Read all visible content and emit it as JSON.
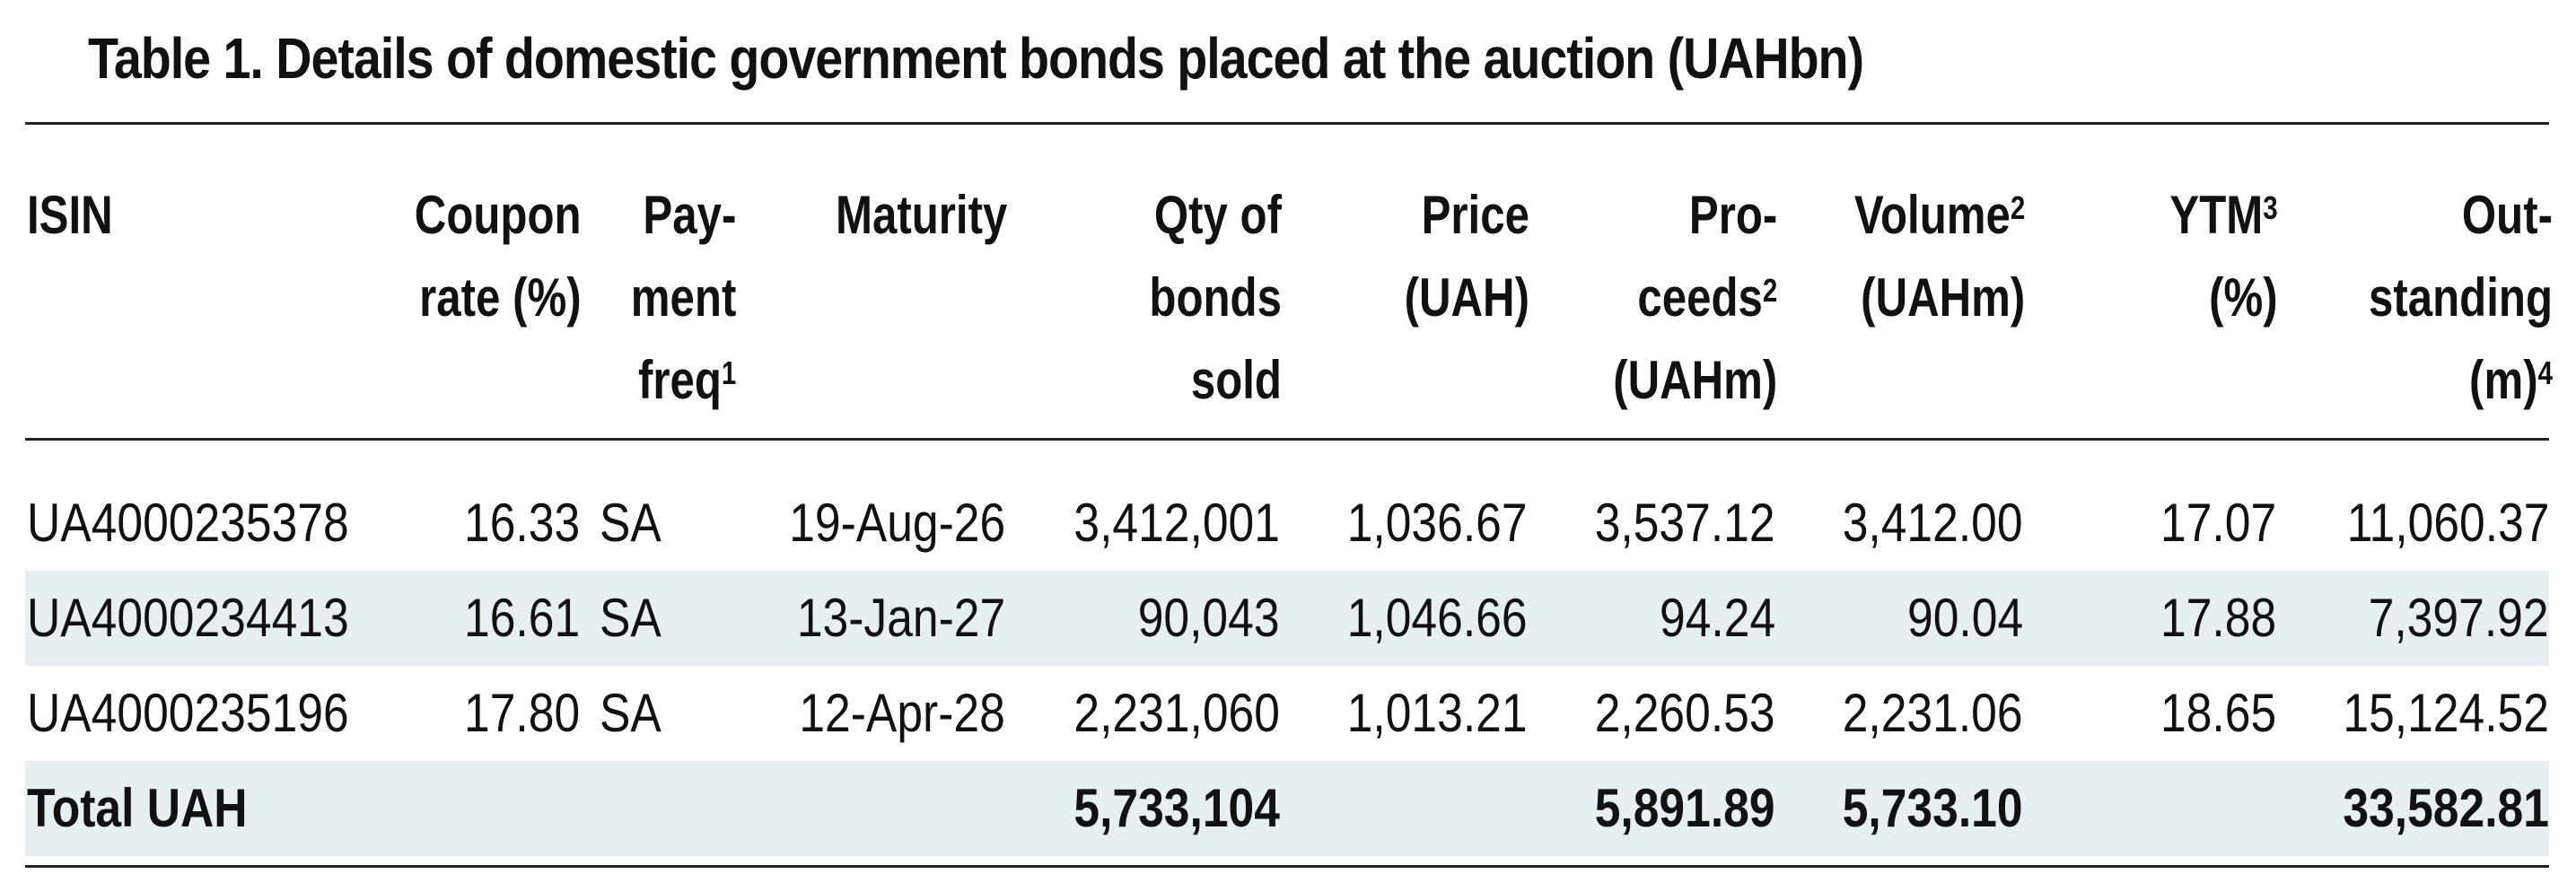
{
  "title": "Table 1. Details of domestic government bonds placed at the auction (UAHbn)",
  "headers": {
    "isin": [
      "ISIN"
    ],
    "coupon": [
      "Coupon",
      "rate (%)"
    ],
    "freq": [
      "Pay-",
      "ment",
      "freq"
    ],
    "freq_sup": "1",
    "maturity": [
      "Maturity"
    ],
    "qty": [
      "Qty of",
      "bonds",
      "sold"
    ],
    "price": [
      "Price",
      "(UAH)"
    ],
    "proceeds": [
      "Pro-",
      "ceeds",
      "(UAHm)"
    ],
    "proceeds_sup": "2",
    "volume": [
      "Volume",
      "(UAHm)"
    ],
    "volume_sup": "2",
    "ytm": [
      "YTM",
      "(%)"
    ],
    "ytm_sup": "3",
    "outstanding": [
      "Out-",
      "standing",
      "(m)"
    ],
    "outstanding_sup": "4"
  },
  "rows": [
    {
      "isin": "UA4000235378",
      "coupon": "16.33",
      "freq": "SA",
      "maturity": "19-Aug-26",
      "qty": "3,412,001",
      "price": "1,036.67",
      "proceeds": "3,537.12",
      "volume": "3,412.00",
      "ytm": "17.07",
      "outstanding": "11,060.37"
    },
    {
      "isin": "UA4000234413",
      "coupon": "16.61",
      "freq": "SA",
      "maturity": "13-Jan-27",
      "qty": "90,043",
      "price": "1,046.66",
      "proceeds": "94.24",
      "volume": "90.04",
      "ytm": "17.88",
      "outstanding": "7,397.92"
    },
    {
      "isin": "UA4000235196",
      "coupon": "17.80",
      "freq": "SA",
      "maturity": "12-Apr-28",
      "qty": "2,231,060",
      "price": "1,013.21",
      "proceeds": "2,260.53",
      "volume": "2,231.06",
      "ytm": "18.65",
      "outstanding": "15,124.52"
    }
  ],
  "total": {
    "label": "Total UAH",
    "qty": "5,733,104",
    "proceeds": "5,891.89",
    "volume": "5,733.10",
    "outstanding": "33,582.81"
  },
  "colors": {
    "row_shade": "#e6f0f0",
    "rule": "#222222",
    "text": "#111111"
  }
}
